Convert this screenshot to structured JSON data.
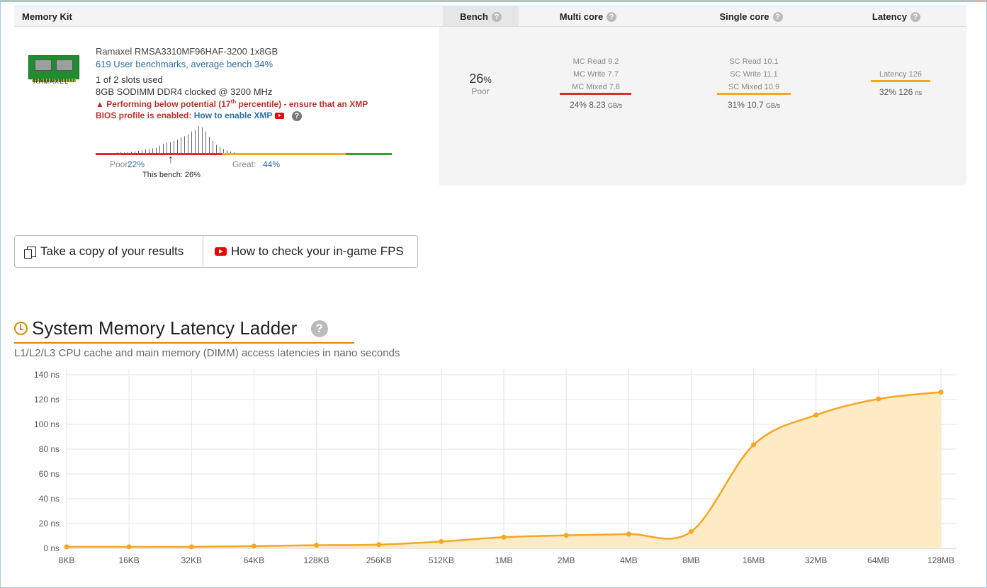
{
  "table": {
    "headers": {
      "kit": "Memory Kit",
      "bench": "Bench",
      "multi": "Multi core",
      "single": "Single core",
      "latency": "Latency"
    },
    "help_glyph": "?",
    "kit": {
      "brand_logo_text": "RAMAXEL",
      "name": "Ramaxel RMSA3310MF96HAF-3200 1x8GB",
      "benchmarks_link": "619 User benchmarks, average bench 34%",
      "slots": "1 of 2 slots used",
      "spec": "8GB SODIMM DDR4 clocked @ 3200 MHz",
      "warning_a": "Performing below potential (17",
      "warning_sup": "th",
      "warning_b": " percentile) - ensure that an XMP",
      "warning_c": "BIOS profile is enabled:",
      "xmp_link": "How to enable XMP",
      "poor_label": "Poor:",
      "poor_value": "22%",
      "great_label": "Great:",
      "great_value": "44%",
      "this_bench": "This bench: 26%",
      "distribution": [
        0.02,
        0.03,
        0.02,
        0.04,
        0.05,
        0.06,
        0.08,
        0.1,
        0.14,
        0.16,
        0.18,
        0.2,
        0.28,
        0.34,
        0.38,
        0.4,
        0.45,
        0.5,
        0.58,
        0.62,
        0.7,
        0.8,
        0.85,
        1.0,
        0.95,
        0.8,
        0.6,
        0.45,
        0.3,
        0.22,
        0.15,
        0.1,
        0.06,
        0.04
      ]
    },
    "bench": {
      "value": "26",
      "unit": "%",
      "label": "Poor"
    },
    "multi": {
      "lines": [
        "MC Read 9.2",
        "MC Write 7.7",
        "MC Mixed 7.8"
      ],
      "summary": "24% 8.23",
      "unit": "GB/s",
      "bar_color": "#e02b2b"
    },
    "single": {
      "lines": [
        "SC Read 10.1",
        "SC Write 11.1",
        "SC Mixed 10.9"
      ],
      "summary": "31% 10.7",
      "unit": "GB/s",
      "bar_color": "#f5a623"
    },
    "latency": {
      "lines": [
        "Latency 126"
      ],
      "summary": "32% 126",
      "unit": "ns",
      "bar_color": "#f5a623"
    }
  },
  "buttons": {
    "copy": "Take a copy of your results",
    "fps": "How to check your in-game FPS"
  },
  "section": {
    "title": "System Memory Latency Ladder",
    "subtitle": "L1/L2/L3 CPU cache and main memory (DIMM) access latencies in nano seconds"
  },
  "colors": {
    "accent": "#f5a623",
    "title_accent": "#d68a10",
    "link": "#2d6ea3",
    "warning": "#b8332d"
  },
  "chart_data": {
    "type": "area",
    "title": "",
    "xlabel": "",
    "ylabel": "",
    "categories": [
      "8KB",
      "16KB",
      "32KB",
      "64KB",
      "128KB",
      "256KB",
      "512KB",
      "1MB",
      "2MB",
      "4MB",
      "8MB",
      "16MB",
      "32MB",
      "64MB",
      "128MB"
    ],
    "values": [
      1.2,
      1.2,
      1.2,
      1.8,
      2.5,
      3,
      5.5,
      9,
      10.5,
      11.5,
      13.5,
      83.5,
      107.5,
      120.5,
      126
    ],
    "y_tick_labels": [
      "0 ns",
      "20 ns",
      "40 ns",
      "60 ns",
      "80 ns",
      "100 ns",
      "120 ns",
      "140 ns"
    ],
    "ylim": [
      0,
      140
    ],
    "grid": true,
    "color": "#f5a623"
  }
}
